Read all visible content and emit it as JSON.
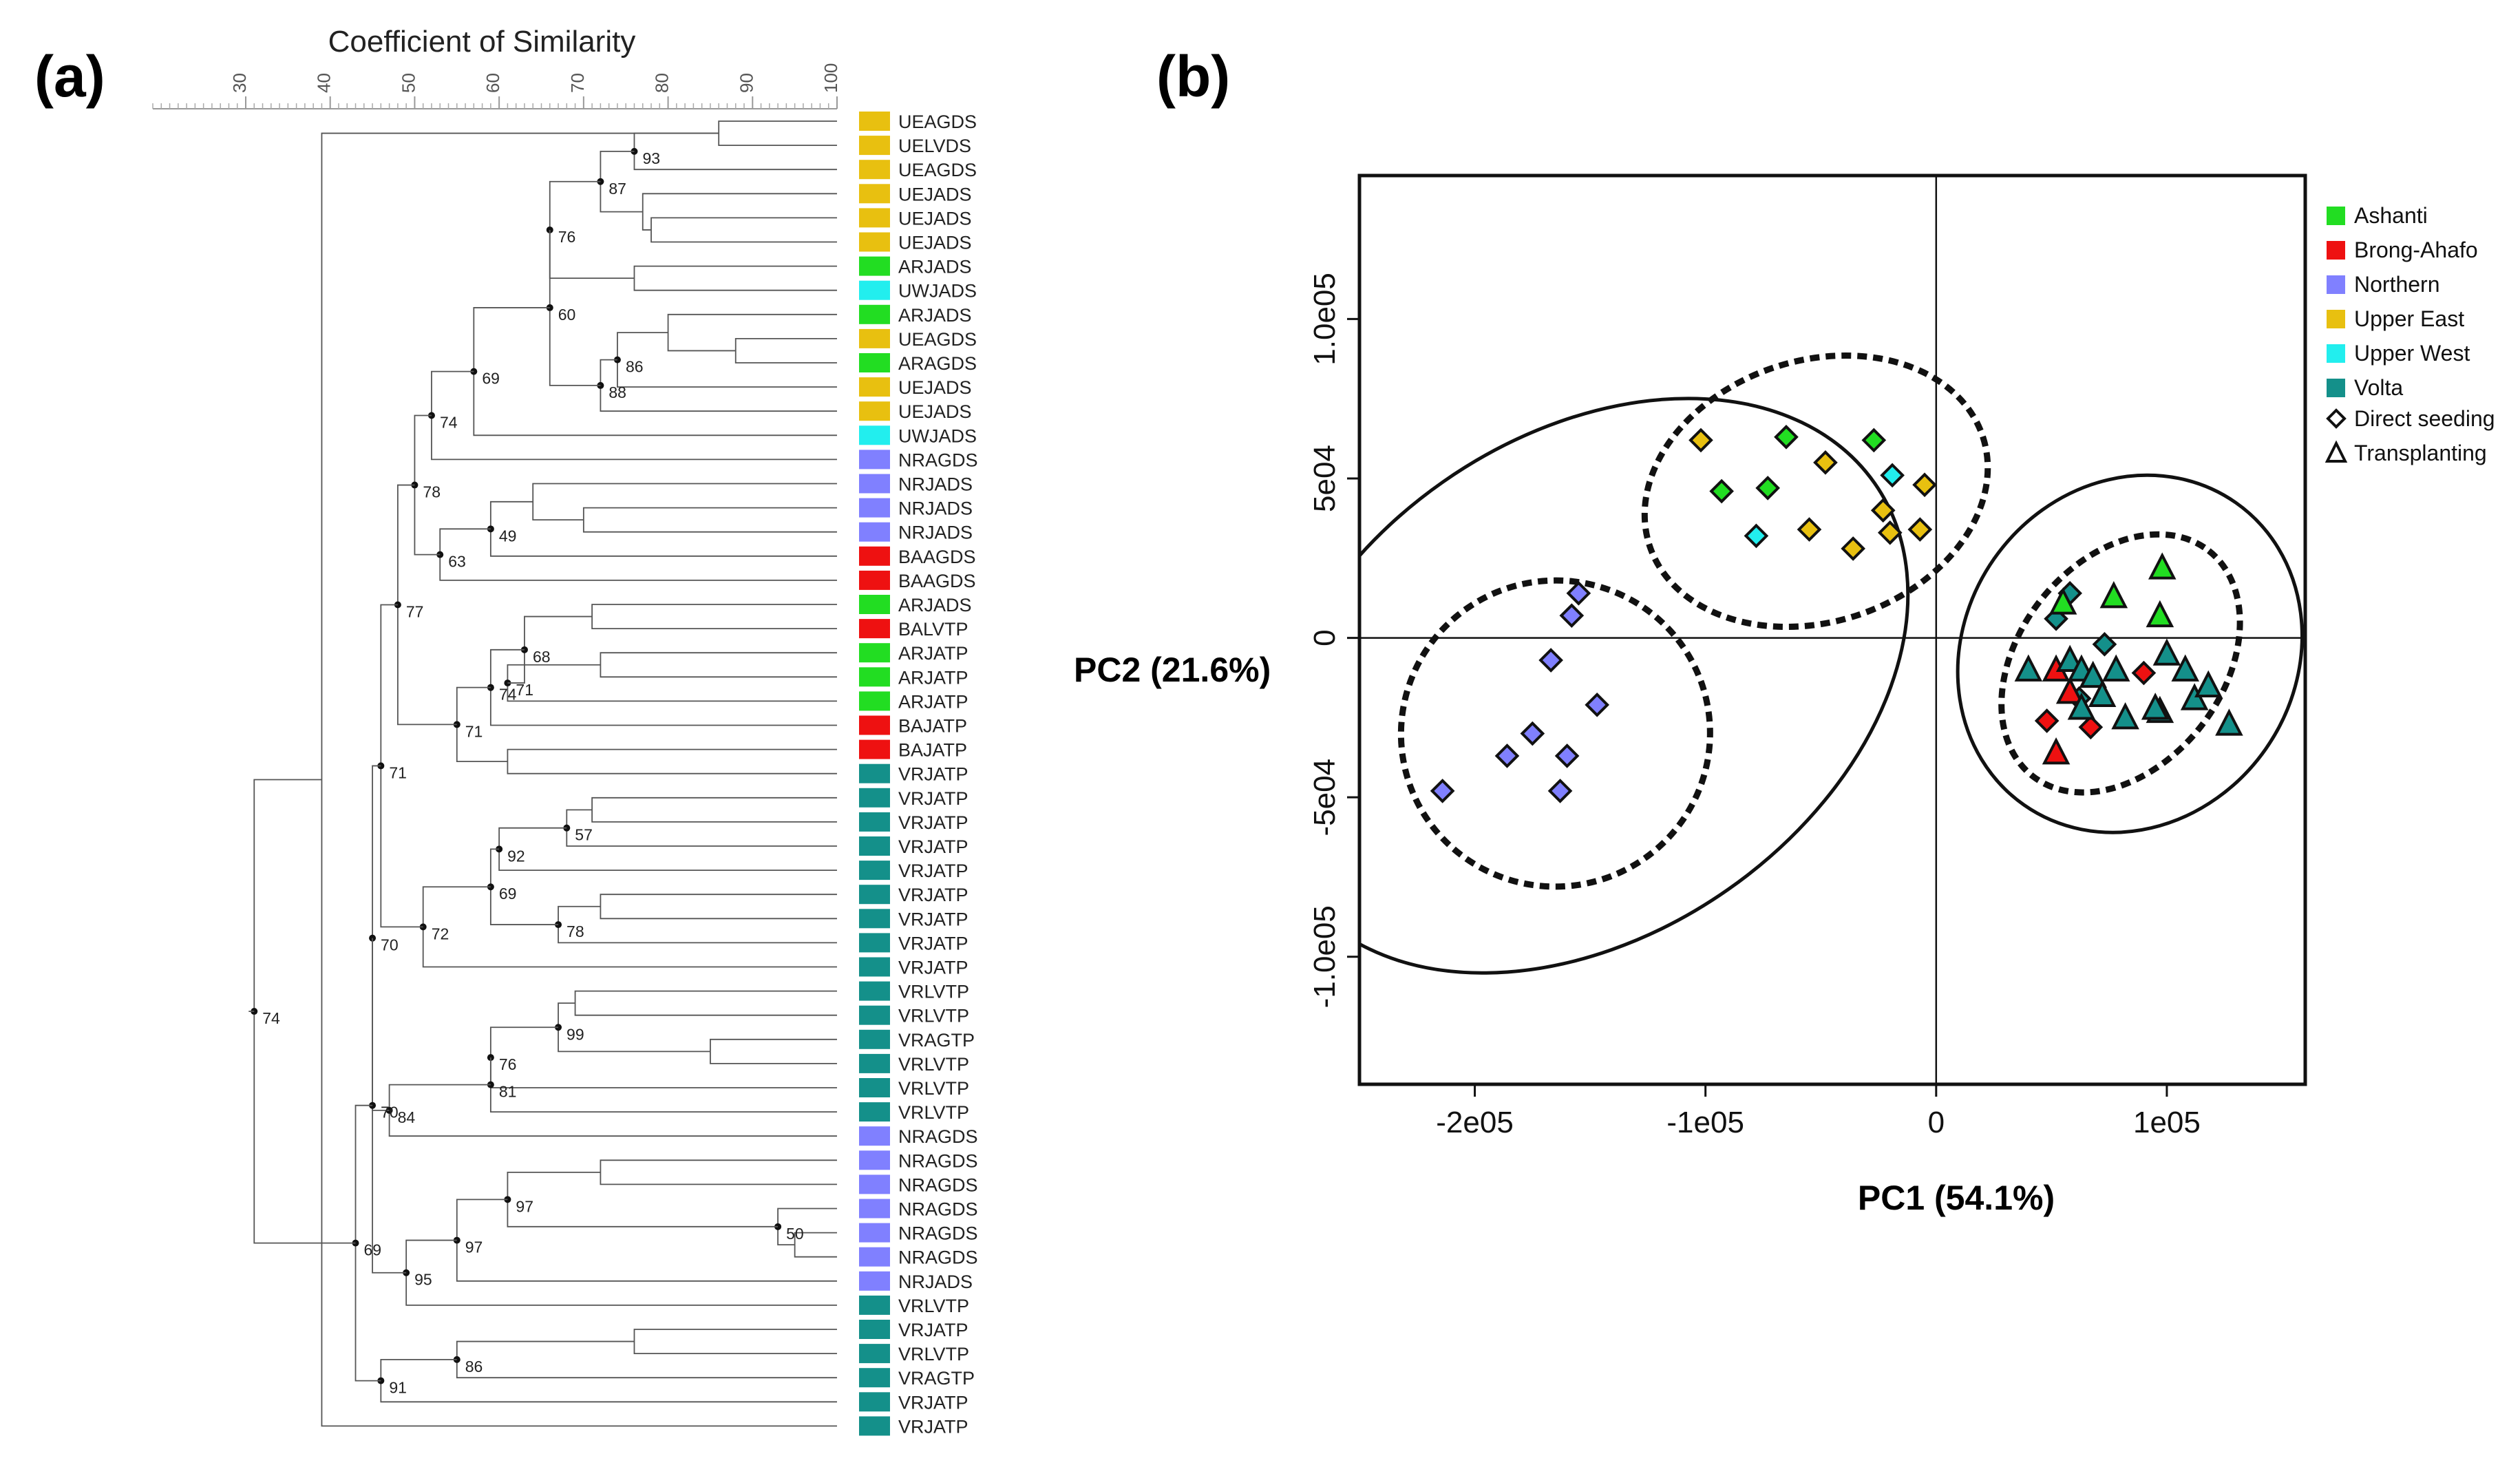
{
  "panels": {
    "a_label": "(a)",
    "b_label": "(b)"
  },
  "chart_data": [
    {
      "type": "dendrogram",
      "title": "Coefficient of Similarity",
      "axis_ticks": [
        30,
        40,
        50,
        60,
        70,
        80,
        90,
        100
      ],
      "axis_range": [
        19,
        100
      ],
      "colors": {
        "Ashanti": "#22dd22",
        "Brong-Ahafo": "#ee1111",
        "Northern": "#8080ff",
        "Upper East": "#e8c010",
        "Upper West": "#22eeee",
        "Volta": "#14908a"
      },
      "leaves": [
        {
          "label": "UEAGDS",
          "region": "Upper East"
        },
        {
          "label": "UELVDS",
          "region": "Upper East"
        },
        {
          "label": "UEAGDS",
          "region": "Upper East"
        },
        {
          "label": "UEJADS",
          "region": "Upper East"
        },
        {
          "label": "UEJADS",
          "region": "Upper East"
        },
        {
          "label": "UEJADS",
          "region": "Upper East"
        },
        {
          "label": "ARJADS",
          "region": "Ashanti"
        },
        {
          "label": "UWJADS",
          "region": "Upper West"
        },
        {
          "label": "ARJADS",
          "region": "Ashanti"
        },
        {
          "label": "UEAGDS",
          "region": "Upper East"
        },
        {
          "label": "ARAGDS",
          "region": "Ashanti"
        },
        {
          "label": "UEJADS",
          "region": "Upper East"
        },
        {
          "label": "UEJADS",
          "region": "Upper East"
        },
        {
          "label": "UWJADS",
          "region": "Upper West"
        },
        {
          "label": "NRAGDS",
          "region": "Northern"
        },
        {
          "label": "NRJADS",
          "region": "Northern"
        },
        {
          "label": "NRJADS",
          "region": "Northern"
        },
        {
          "label": "NRJADS",
          "region": "Northern"
        },
        {
          "label": "BAAGDS",
          "region": "Brong-Ahafo"
        },
        {
          "label": "BAAGDS",
          "region": "Brong-Ahafo"
        },
        {
          "label": "ARJADS",
          "region": "Ashanti"
        },
        {
          "label": "BALVTP",
          "region": "Brong-Ahafo"
        },
        {
          "label": "ARJATP",
          "region": "Ashanti"
        },
        {
          "label": "ARJATP",
          "region": "Ashanti"
        },
        {
          "label": "ARJATP",
          "region": "Ashanti"
        },
        {
          "label": "BAJATP",
          "region": "Brong-Ahafo"
        },
        {
          "label": "BAJATP",
          "region": "Brong-Ahafo"
        },
        {
          "label": "VRJATP",
          "region": "Volta"
        },
        {
          "label": "VRJATP",
          "region": "Volta"
        },
        {
          "label": "VRJATP",
          "region": "Volta"
        },
        {
          "label": "VRJATP",
          "region": "Volta"
        },
        {
          "label": "VRJATP",
          "region": "Volta"
        },
        {
          "label": "VRJATP",
          "region": "Volta"
        },
        {
          "label": "VRJATP",
          "region": "Volta"
        },
        {
          "label": "VRJATP",
          "region": "Volta"
        },
        {
          "label": "VRJATP",
          "region": "Volta"
        },
        {
          "label": "VRLVTP",
          "region": "Volta"
        },
        {
          "label": "VRLVTP",
          "region": "Volta"
        },
        {
          "label": "VRAGTP",
          "region": "Volta"
        },
        {
          "label": "VRLVTP",
          "region": "Volta"
        },
        {
          "label": "VRLVTP",
          "region": "Volta"
        },
        {
          "label": "VRLVTP",
          "region": "Volta"
        },
        {
          "label": "NRAGDS",
          "region": "Northern"
        },
        {
          "label": "NRAGDS",
          "region": "Northern"
        },
        {
          "label": "NRAGDS",
          "region": "Northern"
        },
        {
          "label": "NRAGDS",
          "region": "Northern"
        },
        {
          "label": "NRAGDS",
          "region": "Northern"
        },
        {
          "label": "NRAGDS",
          "region": "Northern"
        },
        {
          "label": "NRJADS",
          "region": "Northern"
        },
        {
          "label": "VRLVTP",
          "region": "Volta"
        },
        {
          "label": "VRJATP",
          "region": "Volta"
        },
        {
          "label": "VRLVTP",
          "region": "Volta"
        },
        {
          "label": "VRAGTP",
          "region": "Volta"
        },
        {
          "label": "VRJATP",
          "region": "Volta"
        },
        {
          "label": "VRJATP",
          "region": "Volta"
        }
      ],
      "merges": [
        {
          "a": 0,
          "b": 1,
          "sim": 86
        },
        {
          "a": 55,
          "b": 2,
          "sim": 76,
          "bootstrap": "93"
        },
        {
          "a": 4,
          "b": 5,
          "sim": 78
        },
        {
          "a": 3,
          "b": 57,
          "sim": 77
        },
        {
          "a": 56,
          "b": 58,
          "sim": 72,
          "bootstrap": "87"
        },
        {
          "a": 6,
          "b": 7,
          "sim": 76
        },
        {
          "a": 59,
          "b": 60,
          "sim": 66,
          "bootstrap": "76"
        },
        {
          "a": 9,
          "b": 10,
          "sim": 88
        },
        {
          "a": 8,
          "b": 62,
          "sim": 80
        },
        {
          "a": 63,
          "b": 11,
          "sim": 74,
          "bootstrap": "86"
        },
        {
          "a": 64,
          "b": 12,
          "sim": 72,
          "bootstrap": "88"
        },
        {
          "a": 61,
          "b": 65,
          "sim": 66,
          "bootstrap": "60"
        },
        {
          "a": 66,
          "b": 13,
          "sim": 57,
          "bootstrap": "69"
        },
        {
          "a": 67,
          "b": 14,
          "sim": 52,
          "bootstrap": "74"
        },
        {
          "a": 16,
          "b": 17,
          "sim": 70
        },
        {
          "a": 15,
          "b": 69,
          "sim": 64
        },
        {
          "a": 70,
          "b": 18,
          "sim": 59,
          "bootstrap": "49"
        },
        {
          "a": 71,
          "b": 19,
          "sim": 53,
          "bootstrap": "63"
        },
        {
          "a": 68,
          "b": 72,
          "sim": 50,
          "bootstrap": "78"
        },
        {
          "a": 20,
          "b": 21,
          "sim": 71
        },
        {
          "a": 22,
          "b": 23,
          "sim": 72
        },
        {
          "a": 24,
          "b": 75,
          "sim": 61,
          "bootstrap": "71"
        },
        {
          "a": 74,
          "b": 76,
          "sim": 63,
          "bootstrap": "68"
        },
        {
          "a": 77,
          "b": 25,
          "sim": 59,
          "bootstrap": "74"
        },
        {
          "a": 26,
          "b": 27,
          "sim": 61
        },
        {
          "a": 78,
          "b": 79,
          "sim": 55,
          "bootstrap": "71"
        },
        {
          "a": 73,
          "b": 80,
          "sim": 48,
          "bootstrap": "77"
        },
        {
          "a": 28,
          "b": 29,
          "sim": 71
        },
        {
          "a": 82,
          "b": 30,
          "sim": 68,
          "bootstrap": "57"
        },
        {
          "a": 31,
          "b": 83,
          "sim": 60,
          "bootstrap": "92"
        },
        {
          "a": 32,
          "b": 33,
          "sim": 72
        },
        {
          "a": 85,
          "b": 34,
          "sim": 67,
          "bootstrap": "78"
        },
        {
          "a": 84,
          "b": 86,
          "sim": 59,
          "bootstrap": "69"
        },
        {
          "a": 87,
          "b": 35,
          "sim": 51,
          "bootstrap": "72"
        },
        {
          "a": 81,
          "b": 88,
          "sim": 46,
          "bootstrap": "71"
        },
        {
          "a": 36,
          "b": 37,
          "sim": 69
        },
        {
          "a": 38,
          "b": 39,
          "sim": 85
        },
        {
          "a": 90,
          "b": 91,
          "sim": 67,
          "bootstrap": "99"
        },
        {
          "a": 40,
          "b": 92,
          "sim": 59,
          "bootstrap": "76"
        },
        {
          "a": 93,
          "b": 41,
          "sim": 59,
          "bootstrap": "81"
        },
        {
          "a": 94,
          "b": 42,
          "sim": 47,
          "bootstrap": "84"
        },
        {
          "a": 89,
          "b": 95,
          "sim": 45,
          "bootstrap": "70"
        },
        {
          "a": 43,
          "b": 44,
          "sim": 72
        },
        {
          "a": 46,
          "b": 47,
          "sim": 95
        },
        {
          "a": 45,
          "b": 98,
          "sim": 93,
          "bootstrap": "50"
        },
        {
          "a": 97,
          "b": 99,
          "sim": 61,
          "bootstrap": "97"
        },
        {
          "a": 100,
          "b": 48,
          "sim": 55,
          "bootstrap": "97"
        },
        {
          "a": 101,
          "b": 49,
          "sim": 49,
          "bootstrap": "95"
        },
        {
          "a": 50,
          "b": 51,
          "sim": 76
        },
        {
          "a": 103,
          "b": 52,
          "sim": 55,
          "bootstrap": "86"
        },
        {
          "a": 104,
          "b": 53,
          "sim": 46,
          "bootstrap": "91"
        },
        {
          "a": 96,
          "b": 102,
          "sim": 45,
          "bootstrap": "70"
        },
        {
          "a": 106,
          "b": 105,
          "sim": 43,
          "bootstrap": "69"
        },
        {
          "a": 54,
          "b": 55,
          "sim": 39
        },
        {
          "a": 107,
          "b": 108,
          "sim": 31,
          "bootstrap": "74"
        }
      ]
    },
    {
      "type": "scatter",
      "xlabel": "PC1 (54.1%)",
      "ylabel": "PC2 (21.6%)",
      "xlim": [
        -250000,
        160000
      ],
      "ylim": [
        -140000,
        145000
      ],
      "xticks": [
        {
          "v": -200000,
          "t": "-2e05"
        },
        {
          "v": -100000,
          "t": "-1e05"
        },
        {
          "v": 0,
          "t": "0"
        },
        {
          "v": 100000,
          "t": "1e05"
        }
      ],
      "yticks": [
        {
          "v": 100000,
          "t": "1.0e05"
        },
        {
          "v": 50000,
          "t": "5e04"
        },
        {
          "v": 0,
          "t": "0"
        },
        {
          "v": -50000,
          "t": "-5e04"
        },
        {
          "v": -100000,
          "t": "-1.0e05"
        }
      ],
      "legend": [
        {
          "label": "Ashanti",
          "color": "#22dd22"
        },
        {
          "label": "Brong-Ahafo",
          "color": "#ee1111"
        },
        {
          "label": "Northern",
          "color": "#8080ff"
        },
        {
          "label": "Upper East",
          "color": "#e8c010"
        },
        {
          "label": "Upper West",
          "color": "#22eeee"
        },
        {
          "label": "Volta",
          "color": "#14908a"
        }
      ],
      "shape_legend": [
        {
          "label": "Direct seeding",
          "shape": "diamond"
        },
        {
          "label": "Transplanting",
          "shape": "triangle"
        }
      ],
      "ellipses": [
        {
          "cx": -152000,
          "cy": -15000,
          "rx": 153000,
          "ry": 78000,
          "angle_deg": 35,
          "style": "solid"
        },
        {
          "cx": -165000,
          "cy": -30000,
          "rx": 67000,
          "ry": 48000,
          "angle_deg": 8,
          "style": "dashed"
        },
        {
          "cx": -52000,
          "cy": 46000,
          "rx": 76000,
          "ry": 41000,
          "angle_deg": 18,
          "style": "dashed"
        },
        {
          "cx": 84000,
          "cy": -5000,
          "rx": 80000,
          "ry": 52000,
          "angle_deg": 55,
          "style": "solid"
        },
        {
          "cx": 80000,
          "cy": -8000,
          "rx": 62000,
          "ry": 32000,
          "angle_deg": 52,
          "style": "dashed"
        }
      ],
      "points": [
        {
          "x": -102000,
          "y": 62000,
          "region": "Upper East",
          "shape": "diamond"
        },
        {
          "x": -65000,
          "y": 63000,
          "region": "Ashanti",
          "shape": "diamond"
        },
        {
          "x": -27000,
          "y": 62000,
          "region": "Ashanti",
          "shape": "diamond"
        },
        {
          "x": -48000,
          "y": 55000,
          "region": "Upper East",
          "shape": "diamond"
        },
        {
          "x": -93000,
          "y": 46000,
          "region": "Ashanti",
          "shape": "diamond"
        },
        {
          "x": -73000,
          "y": 47000,
          "region": "Ashanti",
          "shape": "diamond"
        },
        {
          "x": -19000,
          "y": 51000,
          "region": "Upper West",
          "shape": "diamond"
        },
        {
          "x": -5000,
          "y": 48000,
          "region": "Upper East",
          "shape": "diamond"
        },
        {
          "x": -78000,
          "y": 32000,
          "region": "Upper West",
          "shape": "diamond"
        },
        {
          "x": -55000,
          "y": 34000,
          "region": "Upper East",
          "shape": "diamond"
        },
        {
          "x": -36000,
          "y": 28000,
          "region": "Upper East",
          "shape": "diamond"
        },
        {
          "x": -23000,
          "y": 40000,
          "region": "Upper East",
          "shape": "diamond"
        },
        {
          "x": -20000,
          "y": 33000,
          "region": "Upper East",
          "shape": "diamond"
        },
        {
          "x": -7000,
          "y": 34000,
          "region": "Upper East",
          "shape": "diamond"
        },
        {
          "x": -155000,
          "y": 14000,
          "region": "Northern",
          "shape": "diamond"
        },
        {
          "x": -158000,
          "y": 7000,
          "region": "Northern",
          "shape": "diamond"
        },
        {
          "x": -167000,
          "y": -7000,
          "region": "Northern",
          "shape": "diamond"
        },
        {
          "x": -147000,
          "y": -21000,
          "region": "Northern",
          "shape": "diamond"
        },
        {
          "x": -175000,
          "y": -30000,
          "region": "Northern",
          "shape": "diamond"
        },
        {
          "x": -160000,
          "y": -37000,
          "region": "Northern",
          "shape": "diamond"
        },
        {
          "x": -186000,
          "y": -37000,
          "region": "Northern",
          "shape": "diamond"
        },
        {
          "x": -163000,
          "y": -48000,
          "region": "Northern",
          "shape": "diamond"
        },
        {
          "x": -214000,
          "y": -48000,
          "region": "Northern",
          "shape": "diamond"
        },
        {
          "x": 58000,
          "y": 14000,
          "region": "Volta",
          "shape": "diamond"
        },
        {
          "x": 52000,
          "y": 6000,
          "region": "Volta",
          "shape": "diamond"
        },
        {
          "x": 73000,
          "y": -2000,
          "region": "Volta",
          "shape": "diamond"
        },
        {
          "x": 48000,
          "y": -26000,
          "region": "Brong-Ahafo",
          "shape": "diamond"
        },
        {
          "x": 67000,
          "y": -28000,
          "region": "Brong-Ahafo",
          "shape": "diamond"
        },
        {
          "x": 90000,
          "y": -11000,
          "region": "Brong-Ahafo",
          "shape": "diamond"
        },
        {
          "x": 62000,
          "y": -19000,
          "region": "Volta",
          "shape": "diamond"
        },
        {
          "x": 98000,
          "y": 22000,
          "region": "Ashanti",
          "shape": "triangle"
        },
        {
          "x": 77000,
          "y": 13000,
          "region": "Ashanti",
          "shape": "triangle"
        },
        {
          "x": 97000,
          "y": 7000,
          "region": "Ashanti",
          "shape": "triangle"
        },
        {
          "x": 55000,
          "y": 11000,
          "region": "Ashanti",
          "shape": "triangle"
        },
        {
          "x": 40000,
          "y": -10000,
          "region": "Volta",
          "shape": "triangle"
        },
        {
          "x": 52000,
          "y": -10000,
          "region": "Brong-Ahafo",
          "shape": "triangle"
        },
        {
          "x": 58000,
          "y": -7000,
          "region": "Volta",
          "shape": "triangle"
        },
        {
          "x": 63000,
          "y": -10000,
          "region": "Volta",
          "shape": "triangle"
        },
        {
          "x": 68000,
          "y": -12000,
          "region": "Volta",
          "shape": "triangle"
        },
        {
          "x": 78000,
          "y": -10000,
          "region": "Volta",
          "shape": "triangle"
        },
        {
          "x": 58000,
          "y": -17000,
          "region": "Brong-Ahafo",
          "shape": "triangle"
        },
        {
          "x": 72000,
          "y": -18000,
          "region": "Volta",
          "shape": "triangle"
        },
        {
          "x": 63000,
          "y": -22000,
          "region": "Volta",
          "shape": "triangle"
        },
        {
          "x": 82000,
          "y": -25000,
          "region": "Volta",
          "shape": "triangle"
        },
        {
          "x": 52000,
          "y": -36000,
          "region": "Brong-Ahafo",
          "shape": "triangle"
        },
        {
          "x": 100000,
          "y": -5000,
          "region": "Volta",
          "shape": "triangle"
        },
        {
          "x": 108000,
          "y": -10000,
          "region": "Volta",
          "shape": "triangle"
        },
        {
          "x": 97000,
          "y": -23000,
          "region": "Volta",
          "shape": "triangle"
        },
        {
          "x": 112000,
          "y": -19000,
          "region": "Volta",
          "shape": "triangle"
        },
        {
          "x": 118000,
          "y": -15000,
          "region": "Volta",
          "shape": "triangle"
        },
        {
          "x": 127000,
          "y": -27000,
          "region": "Volta",
          "shape": "triangle"
        },
        {
          "x": 95000,
          "y": -22000,
          "region": "Volta",
          "shape": "triangle"
        }
      ]
    }
  ]
}
